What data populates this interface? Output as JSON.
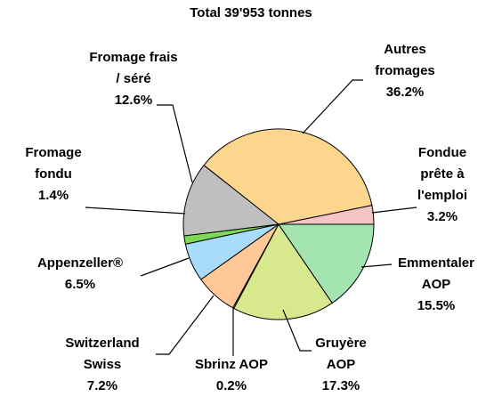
{
  "chart_data": {
    "type": "pie",
    "title": "Total 39'953 tonnes",
    "categories": [
      "Emmentaler AOP",
      "Gruyère AOP",
      "Sbrinz AOP",
      "Switzerland Swiss",
      "Appenzeller®",
      "Fromage fondu",
      "Fromage frais / séré",
      "Autres fromages",
      "Fondue prête à l'emploi"
    ],
    "values": [
      15.5,
      17.3,
      0.2,
      7.2,
      6.5,
      1.4,
      12.6,
      36.2,
      3.2
    ],
    "value_labels": [
      "15.5%",
      "17.3%",
      "0.2%",
      "7.2%",
      "6.5%",
      "1.4%",
      "12.6%",
      "36.2%",
      "3.2%"
    ],
    "colors": [
      "#a3e4b0",
      "#d7e98c",
      "#f9e0c0",
      "#ffc896",
      "#a9dcfa",
      "#7ed957",
      "#bfbfbf",
      "#fdd68e",
      "#f4c4c4"
    ]
  }
}
